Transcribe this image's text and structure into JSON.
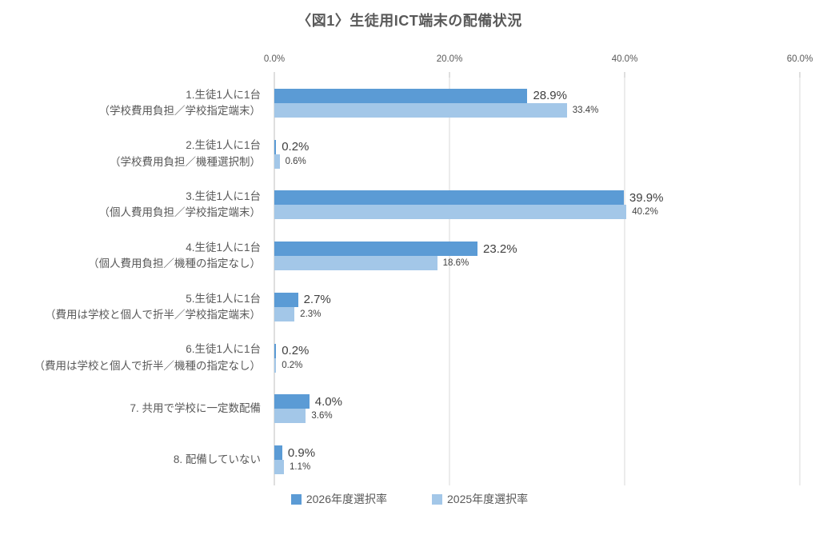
{
  "title": "〈図1〉生徒用ICT端末の配備状況",
  "colors": {
    "series_2026": "#5b9bd5",
    "series_2025": "#a3c7e8",
    "gridline": "#d9d9d9",
    "axis_line": "#bfbfbf",
    "title_text": "#595959",
    "label_text": "#404040"
  },
  "chart_data": {
    "type": "bar",
    "orientation": "horizontal",
    "title": "〈図1〉生徒用ICT端末の配備状況",
    "xlabel": "",
    "ylabel": "",
    "xlim": [
      0,
      60
    ],
    "x_tick_values": [
      0,
      20,
      40,
      60
    ],
    "x_tick_labels": [
      "0.0%",
      "20.0%",
      "40.0%",
      "60.0%"
    ],
    "grid": true,
    "legend_position": "bottom",
    "categories": [
      [
        "1.生徒1人に1台",
        "（学校費用負担／学校指定端末）"
      ],
      [
        "2.生徒1人に1台",
        "（学校費用負担／機種選択制）"
      ],
      [
        "3.生徒1人に1台",
        "（個人費用負担／学校指定端末）"
      ],
      [
        "4.生徒1人に1台",
        "（個人費用負担／機種の指定なし）"
      ],
      [
        "5.生徒1人に1台",
        "（費用は学校と個人で折半／学校指定端末）"
      ],
      [
        "6.生徒1人に1台",
        "（費用は学校と個人で折半／機種の指定なし）"
      ],
      [
        "7. 共用で学校に一定数配備"
      ],
      [
        "8. 配備していない"
      ]
    ],
    "series": [
      {
        "name": "2026年度選択率",
        "color": "#5b9bd5",
        "values": [
          28.9,
          0.2,
          39.9,
          23.2,
          2.7,
          0.2,
          4.0,
          0.9
        ],
        "labels": [
          "28.9%",
          "0.2%",
          "39.9%",
          "23.2%",
          "2.7%",
          "0.2%",
          "4.0%",
          "0.9%"
        ]
      },
      {
        "name": "2025年度選択率",
        "color": "#a3c7e8",
        "values": [
          33.4,
          0.6,
          40.2,
          18.6,
          2.3,
          0.2,
          3.6,
          1.1
        ],
        "labels": [
          "33.4%",
          "0.6%",
          "40.2%",
          "18.6%",
          "2.3%",
          "0.2%",
          "3.6%",
          "1.1%"
        ]
      }
    ]
  }
}
